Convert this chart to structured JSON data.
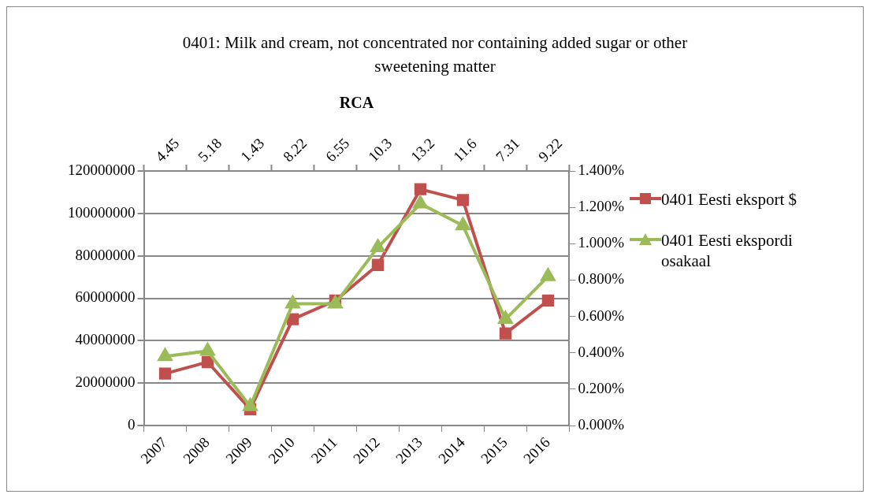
{
  "chart_data": {
    "type": "line",
    "title": "0401: Milk and cream, not concentrated nor containing added sugar or other sweetening matter",
    "x2label": "RCA",
    "categories": [
      "2007",
      "2008",
      "2009",
      "2010",
      "2011",
      "2012",
      "2013",
      "2014",
      "2015",
      "2016"
    ],
    "annotations": [
      "4.45",
      "5.18",
      "1.43",
      "8.22",
      "6.55",
      "10.3",
      "13.2",
      "11.6",
      "7.31",
      "9.22"
    ],
    "series": [
      {
        "name": "0401 Eesti eksport $",
        "color": "#c0504d",
        "marker": "square",
        "values": [
          24500000,
          29900000,
          7700000,
          50100000,
          58900000,
          75700000,
          111400000,
          106300000,
          43400000,
          58900000
        ]
      },
      {
        "name": "0401 Eesti ekspordi osakaal",
        "color": "#9bbb59",
        "marker": "triangle",
        "axis": "y2",
        "values": [
          0.38,
          0.41,
          0.105,
          0.67,
          0.67,
          0.98,
          1.22,
          1.1,
          0.585,
          0.82
        ]
      }
    ],
    "ylim": [
      0,
      120000000
    ],
    "yticks": [
      0,
      20000000,
      40000000,
      60000000,
      80000000,
      100000000,
      120000000
    ],
    "y2lim": [
      0,
      1.4
    ],
    "y2ticks": [
      {
        "value": 0,
        "label": "0.000%"
      },
      {
        "value": 0.2,
        "label": "0.200%"
      },
      {
        "value": 0.4,
        "label": "0.400%"
      },
      {
        "value": 0.6,
        "label": "0.600%"
      },
      {
        "value": 0.8,
        "label": "0.800%"
      },
      {
        "value": 1,
        "label": "1.000%"
      },
      {
        "value": 1.2,
        "label": "1.200%"
      },
      {
        "value": 1.4,
        "label": "1.400%"
      }
    ],
    "grid": "y",
    "legend": "right",
    "line_style": "solid"
  }
}
